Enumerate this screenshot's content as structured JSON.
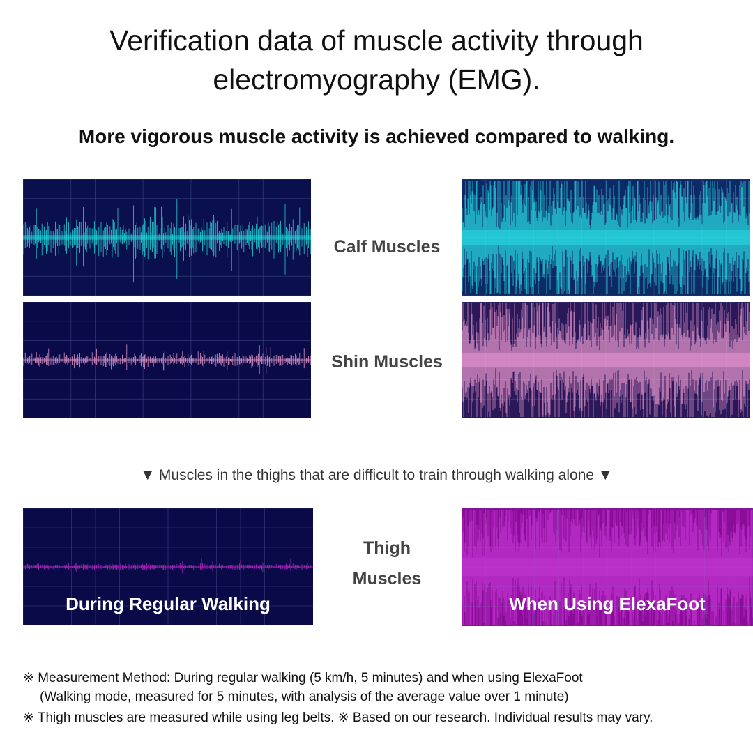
{
  "header": {
    "title": "Verification data of muscle activity through electromyography (EMG).",
    "subtitle": "More vigorous muscle activity is achieved compared to walking."
  },
  "rows": [
    {
      "label": "Calf Muscles"
    },
    {
      "label": "Shin Muscles"
    }
  ],
  "divider": "▼ Muscles in the thighs that are difficult to train through walking alone ▼",
  "thigh": {
    "label": "Thigh Muscles",
    "left_caption": "During Regular Walking",
    "right_caption": "When Using ElexaFoot"
  },
  "notes": [
    "※ Measurement Method: During regular walking (5 km/h, 5 minutes) and when using ElexaFoot",
    "(Walking mode, measured for 5 minutes, with analysis of the average value over 1 minute)",
    "※ Thigh muscles are measured while using leg belts. ※ Based on our research. Individual results may vary."
  ]
}
